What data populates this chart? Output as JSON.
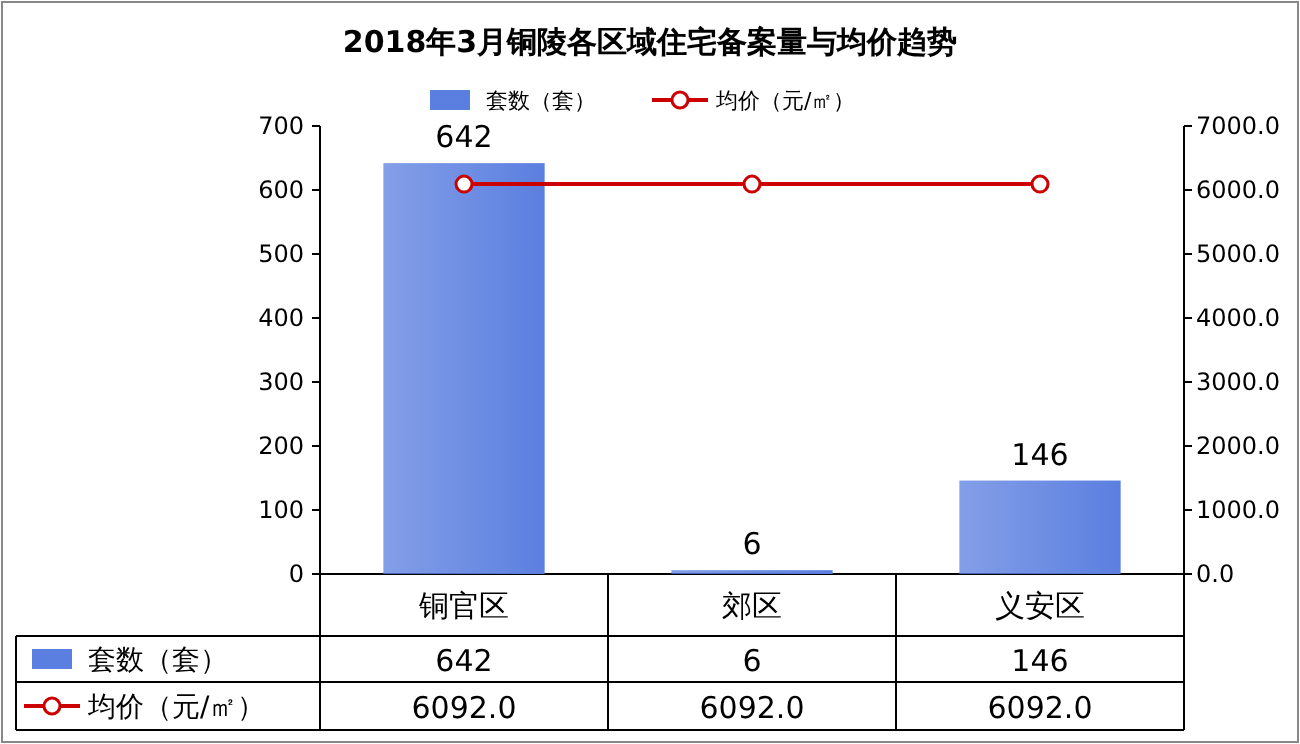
{
  "chart_data": {
    "type": "bar",
    "title": "2018年3月铜陵各区域住宅备案量与均价趋势",
    "categories": [
      "铜官区",
      "郊区",
      "义安区"
    ],
    "series": [
      {
        "name": "套数（套）",
        "color": "#5b7fe0",
        "values": [
          642,
          6,
          146
        ],
        "value_labels": [
          "642",
          "6",
          "146"
        ]
      },
      {
        "name": "均价（元/㎡）",
        "type": "line",
        "axis": "y2",
        "color": "#cc0000",
        "marker": "circle",
        "values": [
          6092,
          6092,
          6092
        ],
        "value_labels": [
          "6092.0",
          "6092.0",
          "6092.0"
        ]
      }
    ],
    "ylim": [
      0,
      700
    ],
    "yticks": [
      0,
      100,
      200,
      300,
      400,
      500,
      600,
      700
    ],
    "y2lim": [
      0,
      7000
    ],
    "y2ticks": [
      {
        "value": 0,
        "label": "0.0"
      },
      {
        "value": 1000,
        "label": "1000.0"
      },
      {
        "value": 2000,
        "label": "2000.0"
      },
      {
        "value": 3000,
        "label": "3000.0"
      },
      {
        "value": 4000,
        "label": "4000.0"
      },
      {
        "value": 5000,
        "label": "5000.0"
      },
      {
        "value": 6000,
        "label": "6000.0"
      },
      {
        "value": 7000,
        "label": "7000.0"
      }
    ],
    "legend": "top",
    "grid": false
  }
}
